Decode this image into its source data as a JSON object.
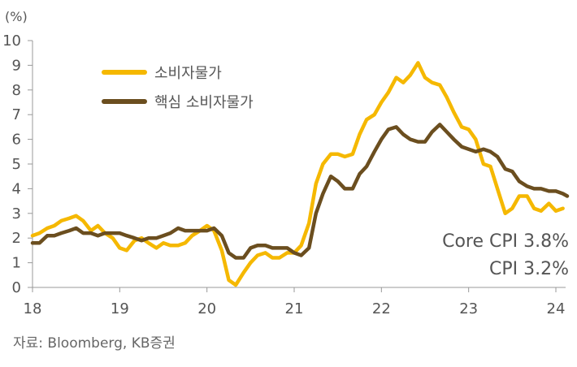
{
  "chart_data": {
    "type": "line",
    "y_unit_label": "(%)",
    "ylim": [
      0,
      10
    ],
    "y_ticks": [
      "0",
      "1",
      "2",
      "3",
      "4",
      "5",
      "6",
      "7",
      "8",
      "9",
      "10"
    ],
    "xlim": [
      2018.0,
      2024.15
    ],
    "x_ticks": [
      {
        "value": 2018,
        "label": "18"
      },
      {
        "value": 2019,
        "label": "19"
      },
      {
        "value": 2020,
        "label": "20"
      },
      {
        "value": 2021,
        "label": "21"
      },
      {
        "value": 2022,
        "label": "22"
      },
      {
        "value": 2023,
        "label": "23"
      },
      {
        "value": 2024,
        "label": "24"
      }
    ],
    "grid": false,
    "legend_position": "top-left",
    "series": [
      {
        "name": "소비자물가",
        "color": "#F5B800",
        "points": [
          [
            2018.0,
            2.1
          ],
          [
            2018.08,
            2.2
          ],
          [
            2018.17,
            2.4
          ],
          [
            2018.25,
            2.5
          ],
          [
            2018.33,
            2.7
          ],
          [
            2018.42,
            2.8
          ],
          [
            2018.5,
            2.9
          ],
          [
            2018.58,
            2.7
          ],
          [
            2018.67,
            2.3
          ],
          [
            2018.75,
            2.5
          ],
          [
            2018.83,
            2.2
          ],
          [
            2018.92,
            2.0
          ],
          [
            2019.0,
            1.6
          ],
          [
            2019.08,
            1.5
          ],
          [
            2019.17,
            1.9
          ],
          [
            2019.25,
            2.0
          ],
          [
            2019.33,
            1.8
          ],
          [
            2019.42,
            1.6
          ],
          [
            2019.5,
            1.8
          ],
          [
            2019.58,
            1.7
          ],
          [
            2019.67,
            1.7
          ],
          [
            2019.75,
            1.8
          ],
          [
            2019.83,
            2.1
          ],
          [
            2019.92,
            2.3
          ],
          [
            2020.0,
            2.5
          ],
          [
            2020.08,
            2.3
          ],
          [
            2020.17,
            1.5
          ],
          [
            2020.25,
            0.3
          ],
          [
            2020.33,
            0.1
          ],
          [
            2020.42,
            0.6
          ],
          [
            2020.5,
            1.0
          ],
          [
            2020.58,
            1.3
          ],
          [
            2020.67,
            1.4
          ],
          [
            2020.75,
            1.2
          ],
          [
            2020.83,
            1.2
          ],
          [
            2020.92,
            1.4
          ],
          [
            2021.0,
            1.4
          ],
          [
            2021.08,
            1.7
          ],
          [
            2021.17,
            2.6
          ],
          [
            2021.25,
            4.2
          ],
          [
            2021.33,
            5.0
          ],
          [
            2021.42,
            5.4
          ],
          [
            2021.5,
            5.4
          ],
          [
            2021.58,
            5.3
          ],
          [
            2021.67,
            5.4
          ],
          [
            2021.75,
            6.2
          ],
          [
            2021.83,
            6.8
          ],
          [
            2021.92,
            7.0
          ],
          [
            2022.0,
            7.5
          ],
          [
            2022.08,
            7.9
          ],
          [
            2022.17,
            8.5
          ],
          [
            2022.25,
            8.3
          ],
          [
            2022.33,
            8.6
          ],
          [
            2022.42,
            9.1
          ],
          [
            2022.5,
            8.5
          ],
          [
            2022.58,
            8.3
          ],
          [
            2022.67,
            8.2
          ],
          [
            2022.75,
            7.7
          ],
          [
            2022.83,
            7.1
          ],
          [
            2022.92,
            6.5
          ],
          [
            2023.0,
            6.4
          ],
          [
            2023.08,
            6.0
          ],
          [
            2023.17,
            5.0
          ],
          [
            2023.25,
            4.9
          ],
          [
            2023.33,
            4.0
          ],
          [
            2023.42,
            3.0
          ],
          [
            2023.5,
            3.2
          ],
          [
            2023.58,
            3.7
          ],
          [
            2023.67,
            3.7
          ],
          [
            2023.75,
            3.2
          ],
          [
            2023.83,
            3.1
          ],
          [
            2023.92,
            3.4
          ],
          [
            2024.0,
            3.1
          ],
          [
            2024.08,
            3.2
          ]
        ]
      },
      {
        "name": "핵심 소비자물가",
        "color": "#6B4E1F",
        "points": [
          [
            2018.0,
            1.8
          ],
          [
            2018.08,
            1.8
          ],
          [
            2018.17,
            2.1
          ],
          [
            2018.25,
            2.1
          ],
          [
            2018.33,
            2.2
          ],
          [
            2018.42,
            2.3
          ],
          [
            2018.5,
            2.4
          ],
          [
            2018.58,
            2.2
          ],
          [
            2018.67,
            2.2
          ],
          [
            2018.75,
            2.1
          ],
          [
            2018.83,
            2.2
          ],
          [
            2018.92,
            2.2
          ],
          [
            2019.0,
            2.2
          ],
          [
            2019.08,
            2.1
          ],
          [
            2019.17,
            2.0
          ],
          [
            2019.25,
            1.9
          ],
          [
            2019.33,
            2.0
          ],
          [
            2019.42,
            2.0
          ],
          [
            2019.5,
            2.1
          ],
          [
            2019.58,
            2.2
          ],
          [
            2019.67,
            2.4
          ],
          [
            2019.75,
            2.3
          ],
          [
            2019.83,
            2.3
          ],
          [
            2019.92,
            2.3
          ],
          [
            2020.0,
            2.3
          ],
          [
            2020.08,
            2.4
          ],
          [
            2020.17,
            2.1
          ],
          [
            2020.25,
            1.4
          ],
          [
            2020.33,
            1.2
          ],
          [
            2020.42,
            1.2
          ],
          [
            2020.5,
            1.6
          ],
          [
            2020.58,
            1.7
          ],
          [
            2020.67,
            1.7
          ],
          [
            2020.75,
            1.6
          ],
          [
            2020.83,
            1.6
          ],
          [
            2020.92,
            1.6
          ],
          [
            2021.0,
            1.4
          ],
          [
            2021.08,
            1.3
          ],
          [
            2021.17,
            1.6
          ],
          [
            2021.25,
            3.0
          ],
          [
            2021.33,
            3.8
          ],
          [
            2021.42,
            4.5
          ],
          [
            2021.5,
            4.3
          ],
          [
            2021.58,
            4.0
          ],
          [
            2021.67,
            4.0
          ],
          [
            2021.75,
            4.6
          ],
          [
            2021.83,
            4.9
          ],
          [
            2021.92,
            5.5
          ],
          [
            2022.0,
            6.0
          ],
          [
            2022.08,
            6.4
          ],
          [
            2022.17,
            6.5
          ],
          [
            2022.25,
            6.2
          ],
          [
            2022.33,
            6.0
          ],
          [
            2022.42,
            5.9
          ],
          [
            2022.5,
            5.9
          ],
          [
            2022.58,
            6.3
          ],
          [
            2022.67,
            6.6
          ],
          [
            2022.75,
            6.3
          ],
          [
            2022.83,
            6.0
          ],
          [
            2022.92,
            5.7
          ],
          [
            2023.0,
            5.6
          ],
          [
            2023.08,
            5.5
          ],
          [
            2023.17,
            5.6
          ],
          [
            2023.25,
            5.5
          ],
          [
            2023.33,
            5.3
          ],
          [
            2023.42,
            4.8
          ],
          [
            2023.5,
            4.7
          ],
          [
            2023.58,
            4.3
          ],
          [
            2023.67,
            4.1
          ],
          [
            2023.75,
            4.0
          ],
          [
            2023.83,
            4.0
          ],
          [
            2023.92,
            3.9
          ],
          [
            2024.0,
            3.9
          ],
          [
            2024.08,
            3.8
          ],
          [
            2024.13,
            3.7
          ]
        ]
      }
    ],
    "annotations": [
      "Core CPI 3.8%",
      "CPI 3.2%"
    ]
  },
  "source": "자료: Bloomberg, KB증권"
}
